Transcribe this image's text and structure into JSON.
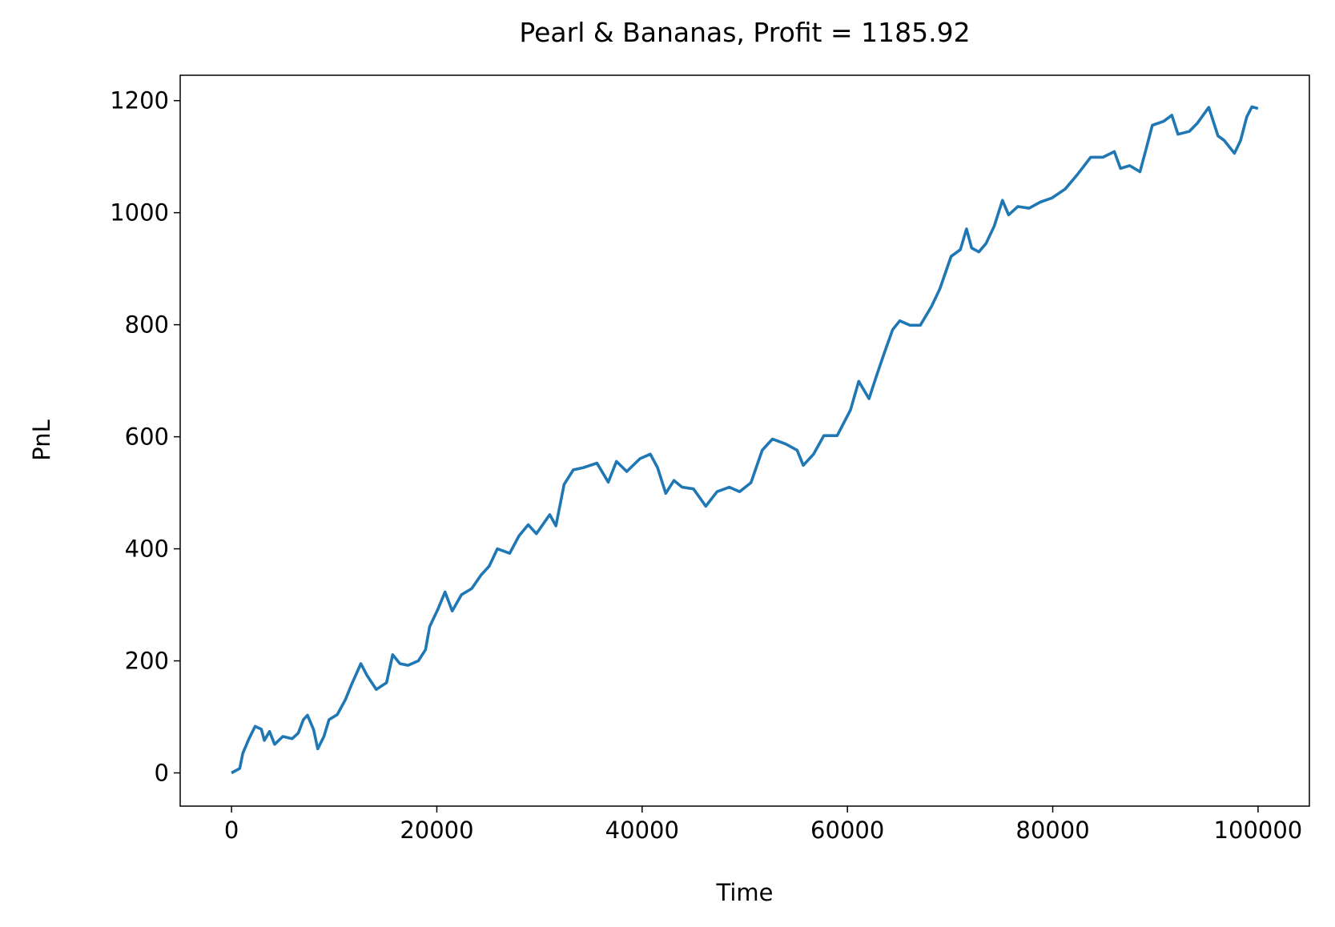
{
  "chart_data": {
    "type": "line",
    "title": "Pearl & Bananas, Profit = 1185.92",
    "xlabel": "Time",
    "ylabel": "PnL",
    "xlim": [
      -5000,
      105000
    ],
    "ylim": [
      -59.3,
      1245.3
    ],
    "xticks": [
      0,
      20000,
      40000,
      60000,
      80000,
      100000
    ],
    "yticks": [
      0,
      200,
      400,
      600,
      800,
      1000,
      1200
    ],
    "grid": false,
    "x": [
      0,
      800,
      1100,
      1700,
      2300,
      2900,
      3200,
      3700,
      4200,
      5000,
      5900,
      6500,
      7000,
      7400,
      8000,
      8400,
      9000,
      9500,
      10300,
      11100,
      11700,
      12600,
      13200,
      14100,
      15100,
      15700,
      16400,
      17200,
      18200,
      18900,
      19300,
      20100,
      20800,
      21500,
      22400,
      23400,
      24300,
      25100,
      25900,
      27100,
      28000,
      28900,
      29700,
      31000,
      31600,
      32400,
      33300,
      34300,
      35600,
      36700,
      37500,
      38500,
      39800,
      40800,
      41500,
      42300,
      43100,
      43900,
      45000,
      46200,
      47300,
      48500,
      49500,
      50600,
      51700,
      52700,
      54000,
      55100,
      55700,
      56700,
      57700,
      59000,
      60300,
      61100,
      62100,
      62800,
      63600,
      64400,
      65100,
      66100,
      67100,
      68200,
      69000,
      70100,
      71000,
      71600,
      72100,
      72800,
      73500,
      74300,
      75100,
      75700,
      76600,
      77700,
      78800,
      79900,
      81200,
      82400,
      83700,
      84900,
      86000,
      86600,
      87500,
      88500,
      89100,
      89700,
      90800,
      91600,
      92200,
      93300,
      94100,
      95200,
      96100,
      96700,
      97700,
      98300,
      98900,
      99400,
      100000
    ],
    "series": [
      {
        "color": "#1f77b4",
        "values": [
          0,
          8,
          35,
          61,
          83,
          78,
          58,
          74,
          51,
          65,
          61,
          71,
          95,
          103,
          77,
          43,
          65,
          95,
          104,
          131,
          158,
          195,
          174,
          149,
          161,
          211,
          195,
          192,
          200,
          220,
          261,
          292,
          323,
          289,
          318,
          329,
          353,
          369,
          400,
          392,
          423,
          443,
          427,
          461,
          441,
          515,
          541,
          545,
          553,
          519,
          556,
          538,
          561,
          569,
          545,
          499,
          522,
          510,
          507,
          476,
          502,
          510,
          502,
          518,
          576,
          596,
          587,
          576,
          549,
          569,
          602,
          602,
          648,
          699,
          668,
          707,
          750,
          791,
          807,
          799,
          799,
          833,
          864,
          922,
          934,
          971,
          937,
          930,
          945,
          976,
          1022,
          996,
          1011,
          1008,
          1019,
          1026,
          1042,
          1068,
          1099,
          1099,
          1109,
          1079,
          1084,
          1073,
          1114,
          1156,
          1163,
          1174,
          1140,
          1145,
          1160,
          1188,
          1137,
          1129,
          1106,
          1129,
          1171,
          1189,
          1185.92
        ]
      }
    ]
  }
}
